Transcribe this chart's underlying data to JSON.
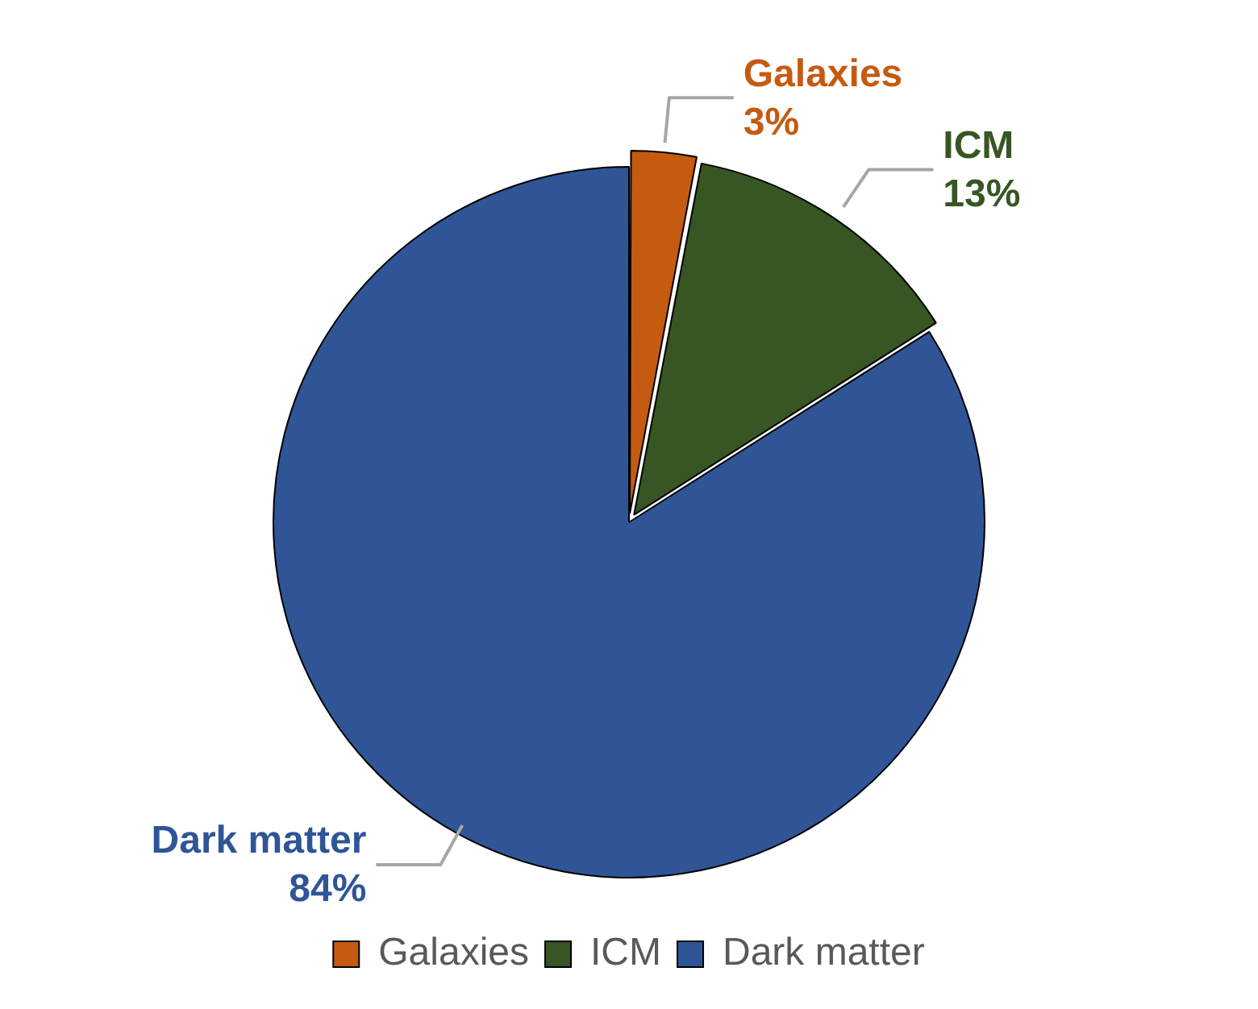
{
  "chart_data": {
    "type": "pie",
    "categories": [
      "Galaxies",
      "ICM",
      "Dark matter"
    ],
    "values": [
      3,
      13,
      84
    ],
    "colors": [
      "#c55a11",
      "#375623",
      "#2f5597"
    ],
    "value_labels": [
      "3%",
      "13%",
      "84%"
    ],
    "legend": "bottom"
  }
}
